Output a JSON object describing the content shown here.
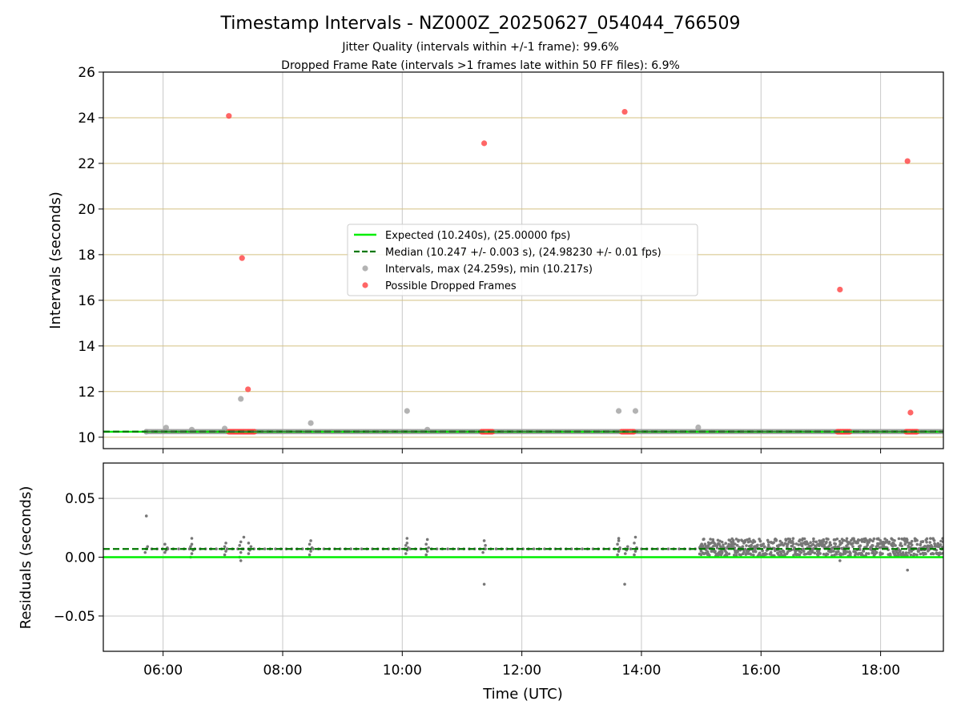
{
  "chart_data": {
    "type": "scatter",
    "title": "Timestamp Intervals - NZ000Z_20250627_054044_766509",
    "subtitle_lines": [
      "Jitter Quality (intervals within +/-1 frame): 99.6%",
      "Dropped Frame Rate (intervals >1 frames late within 50 FF files): 6.9%"
    ],
    "xlabel": "Time (UTC)",
    "x_ticks": [
      "06:00",
      "08:00",
      "10:00",
      "12:00",
      "14:00",
      "16:00",
      "18:00"
    ],
    "x_tick_hours": [
      6,
      8,
      10,
      12,
      14,
      16,
      18
    ],
    "xlim_hours": [
      5.0,
      19.05
    ],
    "colors": {
      "expected": "#00ee00",
      "median": "#007700",
      "intervals": "#999999",
      "dropped": "#ff4040",
      "residuals": "#777777",
      "hgrid_top": "#d4c082",
      "grid": "#c8c8c8"
    },
    "panels": {
      "intervals": {
        "ylabel": "Intervals (seconds)",
        "ylim": [
          9.5,
          26
        ],
        "y_ticks": [
          10,
          12,
          14,
          16,
          18,
          20,
          22,
          24,
          26
        ],
        "expected": 10.24,
        "median": 10.247,
        "legend": {
          "position": "center",
          "entries": [
            {
              "kind": "line",
              "label": "Expected (10.240s), (25.00000 fps)"
            },
            {
              "kind": "dashed",
              "label": "Median (10.247 +/- 0.003 s), (24.98230 +/- 0.01 fps)"
            },
            {
              "kind": "gray-dot",
              "label": "Intervals, max (24.259s), min (10.217s)"
            },
            {
              "kind": "red-dot",
              "label": "Possible Dropped Frames"
            }
          ]
        },
        "gray_points": [
          [
            5.72,
            10.24
          ],
          [
            6.05,
            10.42
          ],
          [
            6.48,
            10.33
          ],
          [
            7.03,
            10.38
          ],
          [
            7.3,
            11.68
          ],
          [
            8.47,
            10.62
          ],
          [
            10.08,
            11.15
          ],
          [
            10.42,
            10.33
          ],
          [
            13.62,
            11.15
          ],
          [
            13.9,
            11.15
          ],
          [
            14.95,
            10.43
          ]
        ],
        "red_points": [
          [
            7.1,
            24.08
          ],
          [
            7.32,
            17.85
          ],
          [
            7.42,
            12.1
          ],
          [
            11.37,
            22.88
          ],
          [
            13.72,
            24.26
          ],
          [
            17.32,
            16.47
          ],
          [
            18.45,
            22.1
          ],
          [
            18.5,
            11.08
          ]
        ],
        "red_clusters": [
          [
            7.1,
            7.55
          ],
          [
            11.33,
            11.53
          ],
          [
            13.67,
            13.88
          ],
          [
            17.28,
            17.5
          ],
          [
            18.43,
            18.62
          ]
        ]
      },
      "residuals": {
        "ylabel": "Residuals (seconds)",
        "ylim": [
          -0.08,
          0.08
        ],
        "y_ticks": [
          0.05,
          0.0,
          -0.05
        ],
        "y_tick_labels": [
          "0.05",
          "0.00",
          "−0.05"
        ],
        "expected": 0.0,
        "median": 0.007,
        "dense_band": {
          "x_start": 14.97,
          "x_end": 19.05,
          "y_min": 0.001,
          "y_max": 0.016
        },
        "clusters": [
          {
            "x": 5.72,
            "y": [
              0.004,
              0.007,
              0.009
            ]
          },
          {
            "x": 6.05,
            "y": [
              0.004,
              0.006,
              0.008,
              0.011
            ]
          },
          {
            "x": 6.48,
            "y": [
              0.0,
              0.003,
              0.006,
              0.009,
              0.011
            ]
          },
          {
            "x": 7.05,
            "y": [
              0.002,
              0.005,
              0.007,
              0.009,
              0.012
            ]
          },
          {
            "x": 7.3,
            "y": [
              0.0,
              0.004,
              0.007,
              0.01,
              0.013
            ]
          },
          {
            "x": 7.45,
            "y": [
              0.003,
              0.006,
              0.009,
              0.012
            ]
          },
          {
            "x": 8.47,
            "y": [
              0.002,
              0.005,
              0.008,
              0.011
            ]
          },
          {
            "x": 10.08,
            "y": [
              0.003,
              0.006,
              0.008,
              0.01,
              0.012
            ]
          },
          {
            "x": 10.42,
            "y": [
              0.002,
              0.005,
              0.008,
              0.011
            ]
          },
          {
            "x": 11.37,
            "y": [
              0.004,
              0.007,
              0.01
            ]
          },
          {
            "x": 13.62,
            "y": [
              0.002,
              0.005,
              0.008,
              0.011,
              0.014
            ]
          },
          {
            "x": 13.75,
            "y": [
              0.003,
              0.006,
              0.009
            ]
          },
          {
            "x": 13.9,
            "y": [
              0.002,
              0.005,
              0.008,
              0.012
            ]
          }
        ],
        "extra_points": [
          [
            5.72,
            0.035
          ],
          [
            6.48,
            0.016
          ],
          [
            7.35,
            0.017
          ],
          [
            7.3,
            -0.003
          ],
          [
            8.47,
            0.014
          ],
          [
            10.08,
            0.016
          ],
          [
            10.42,
            0.015
          ],
          [
            11.37,
            0.014
          ],
          [
            11.37,
            -0.023
          ],
          [
            13.62,
            0.016
          ],
          [
            13.72,
            -0.023
          ],
          [
            13.9,
            0.017
          ],
          [
            17.32,
            -0.003
          ],
          [
            18.45,
            -0.011
          ]
        ]
      }
    }
  }
}
